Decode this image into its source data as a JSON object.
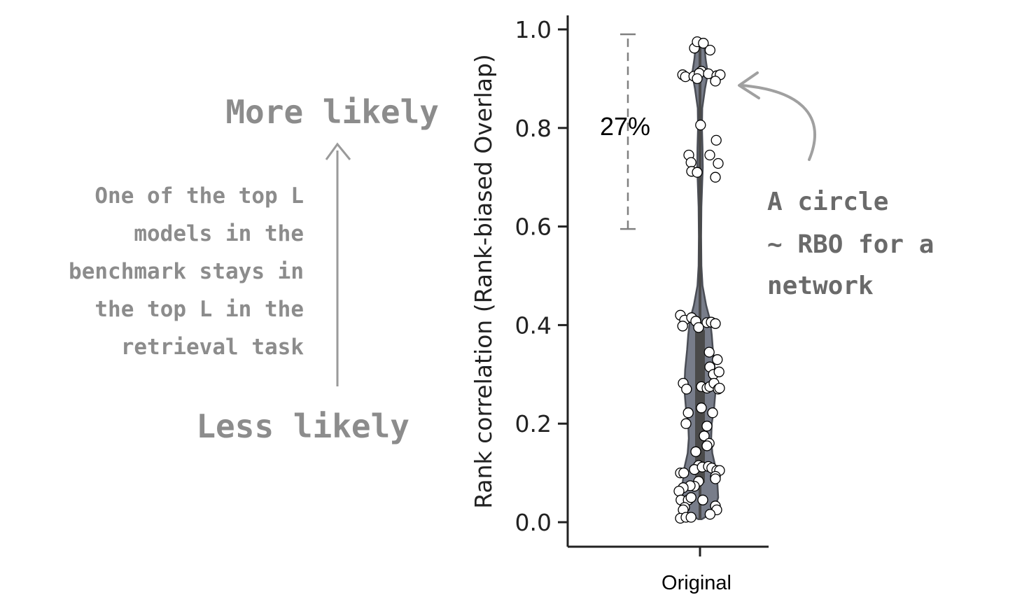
{
  "chart_data": {
    "type": "violin",
    "ylabel": "Rank correlation (Rank-biased Overlap)",
    "xlabel": "",
    "ylim": [
      -0.05,
      1.02
    ],
    "yticks": [
      0.0,
      0.2,
      0.4,
      0.6,
      0.8,
      1.0
    ],
    "ytick_labels": [
      "0.0",
      "0.2",
      "0.4",
      "0.6",
      "0.8",
      "1.0"
    ],
    "categories": [
      "Original"
    ],
    "grid": false,
    "colors": {
      "violin_fill": "#787d8a",
      "violin_edge": "#4a4d55",
      "box": "#4a4a4a",
      "point_fill": "#ffffff",
      "point_edge": "#000000",
      "annotation": "#8a8a8a",
      "bracket": "#808080"
    },
    "density_profile": [
      [
        0.006,
        0.06
      ],
      [
        0.02,
        0.48
      ],
      [
        0.05,
        0.65
      ],
      [
        0.08,
        0.62
      ],
      [
        0.11,
        0.56
      ],
      [
        0.14,
        0.44
      ],
      [
        0.17,
        0.4
      ],
      [
        0.2,
        0.42
      ],
      [
        0.23,
        0.5
      ],
      [
        0.27,
        0.56
      ],
      [
        0.31,
        0.53
      ],
      [
        0.35,
        0.46
      ],
      [
        0.38,
        0.42
      ],
      [
        0.41,
        0.36
      ],
      [
        0.44,
        0.22
      ],
      [
        0.48,
        0.09
      ],
      [
        0.52,
        0.05
      ],
      [
        0.58,
        0.04
      ],
      [
        0.64,
        0.05
      ],
      [
        0.69,
        0.08
      ],
      [
        0.72,
        0.1
      ],
      [
        0.76,
        0.09
      ],
      [
        0.8,
        0.07
      ],
      [
        0.84,
        0.08
      ],
      [
        0.88,
        0.18
      ],
      [
        0.91,
        0.28
      ],
      [
        0.94,
        0.2
      ],
      [
        0.97,
        0.15
      ],
      [
        0.972,
        0.1
      ]
    ],
    "box": {
      "q1": 0.08,
      "q3": 0.39,
      "whisker_low": 0.006,
      "whisker_high": 0.972
    },
    "points": [
      [
        -0.2,
        0.962
      ],
      [
        -0.1,
        0.975
      ],
      [
        0.12,
        0.972
      ],
      [
        0.36,
        0.958
      ],
      [
        -0.62,
        0.908
      ],
      [
        -0.52,
        0.904
      ],
      [
        -0.22,
        0.905
      ],
      [
        0.05,
        0.915
      ],
      [
        -0.03,
        0.911
      ],
      [
        -0.1,
        0.9
      ],
      [
        0.3,
        0.91
      ],
      [
        0.6,
        0.906
      ],
      [
        0.72,
        0.908
      ],
      [
        0.55,
        0.895
      ],
      [
        0.02,
        0.806
      ],
      [
        0.58,
        0.775
      ],
      [
        0.35,
        0.745
      ],
      [
        -0.4,
        0.745
      ],
      [
        -0.32,
        0.73
      ],
      [
        -0.3,
        0.712
      ],
      [
        -0.1,
        0.71
      ],
      [
        0.65,
        0.728
      ],
      [
        0.55,
        0.7
      ],
      [
        -0.7,
        0.42
      ],
      [
        -0.55,
        0.41
      ],
      [
        -0.3,
        0.415
      ],
      [
        -0.15,
        0.408
      ],
      [
        -0.62,
        0.398
      ],
      [
        0.25,
        0.405
      ],
      [
        0.4,
        0.406
      ],
      [
        0.55,
        0.403
      ],
      [
        -0.05,
        0.395
      ],
      [
        0.33,
        0.345
      ],
      [
        0.62,
        0.33
      ],
      [
        0.35,
        0.315
      ],
      [
        0.48,
        0.3
      ],
      [
        0.68,
        0.305
      ],
      [
        -0.6,
        0.282
      ],
      [
        -0.48,
        0.27
      ],
      [
        0.05,
        0.275
      ],
      [
        0.25,
        0.272
      ],
      [
        0.35,
        0.275
      ],
      [
        0.5,
        0.282
      ],
      [
        0.65,
        0.27
      ],
      [
        0.7,
        0.272
      ],
      [
        0.05,
        0.232
      ],
      [
        0.45,
        0.222
      ],
      [
        -0.42,
        0.222
      ],
      [
        -0.5,
        0.2
      ],
      [
        0.25,
        0.195
      ],
      [
        0.15,
        0.175
      ],
      [
        0.33,
        0.16
      ],
      [
        0.25,
        0.155
      ],
      [
        -0.15,
        0.143
      ],
      [
        -0.05,
        0.115
      ],
      [
        -0.2,
        0.107
      ],
      [
        0.08,
        0.112
      ],
      [
        0.3,
        0.113
      ],
      [
        0.42,
        0.11
      ],
      [
        -0.7,
        0.1
      ],
      [
        -0.58,
        0.1
      ],
      [
        0.6,
        0.105
      ],
      [
        0.7,
        0.105
      ],
      [
        0.55,
        0.093
      ],
      [
        0.55,
        0.088
      ],
      [
        -0.05,
        0.083
      ],
      [
        -0.2,
        0.073
      ],
      [
        -0.35,
        0.074
      ],
      [
        -0.6,
        0.07
      ],
      [
        -0.75,
        0.063
      ],
      [
        -0.68,
        0.045
      ],
      [
        -0.42,
        0.045
      ],
      [
        -0.32,
        0.05
      ],
      [
        -0.55,
        0.03
      ],
      [
        -0.6,
        0.025
      ],
      [
        0.1,
        0.045
      ],
      [
        0.55,
        0.033
      ],
      [
        0.6,
        0.025
      ],
      [
        0.36,
        0.016
      ],
      [
        -0.7,
        0.008
      ],
      [
        -0.5,
        0.01
      ],
      [
        -0.32,
        0.01
      ]
    ]
  },
  "annotations": {
    "bracket_label": "27%",
    "bracket_range": [
      0.595,
      0.99
    ],
    "more_likely": "More likely",
    "less_likely": "Less likely",
    "left_note": [
      "One of the top L",
      "models in the",
      "benchmark stays in",
      "the top L in the",
      "retrieval task"
    ],
    "right_note": [
      "A circle",
      "~ RBO for a",
      "network"
    ]
  }
}
